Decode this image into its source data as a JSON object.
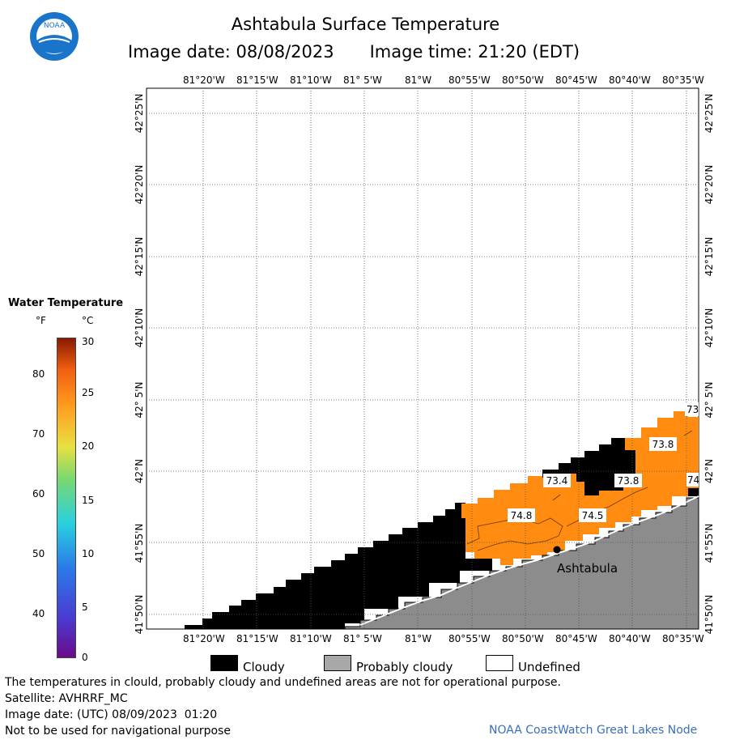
{
  "header": {
    "title": "Ashtabula Surface Temperature",
    "image_date": "Image date: 08/08/2023",
    "image_time": "Image time: 21:20 (EDT)",
    "logo_icon": "noaa-logo-icon",
    "logo_text": "NOAA"
  },
  "map": {
    "lon_labels": [
      "81°20'W",
      "81°15'W",
      "81°10'W",
      "81° 5'W",
      "81°W",
      "80°55'W",
      "80°50'W",
      "80°45'W",
      "80°40'W",
      "80°35'W"
    ],
    "lat_labels": [
      "42°25'N",
      "42°20'N",
      "42°15'N",
      "42°10'N",
      "42° 5'N",
      "42°N",
      "41°55'N",
      "41°50'N"
    ],
    "place_label": "Ashtabula",
    "temperature_labels": [
      "73.8",
      "73.4",
      "73.8",
      "74.8",
      "74.5",
      "73",
      "74"
    ],
    "colors": {
      "cloudy": "#000000",
      "probably_cloudy": "#8c8c8c",
      "water_warm": "#ff8c10",
      "water_edge": "#ffa020"
    }
  },
  "legend": {
    "title": "Water Temperature",
    "unit_f": "°F",
    "unit_c": "°C",
    "f_ticks": [
      "80",
      "70",
      "60",
      "50",
      "40"
    ],
    "c_ticks": [
      "30",
      "25",
      "20",
      "15",
      "10",
      "5",
      "0"
    ]
  },
  "key": {
    "cloudy": "Cloudy",
    "probably_cloudy": "Probably cloudy",
    "undefined": "Undefined"
  },
  "footer": {
    "note": "The temperatures in clould, probably cloudy and undefined areas are not for operational purpose.",
    "satellite": "Satellite: AVHRRF_MC",
    "utc_date": "Image date: (UTC) 08/09/2023  01:20",
    "nav_warning": "Not to be used for navigational purpose",
    "node": "NOAA CoastWatch Great Lakes Node"
  }
}
